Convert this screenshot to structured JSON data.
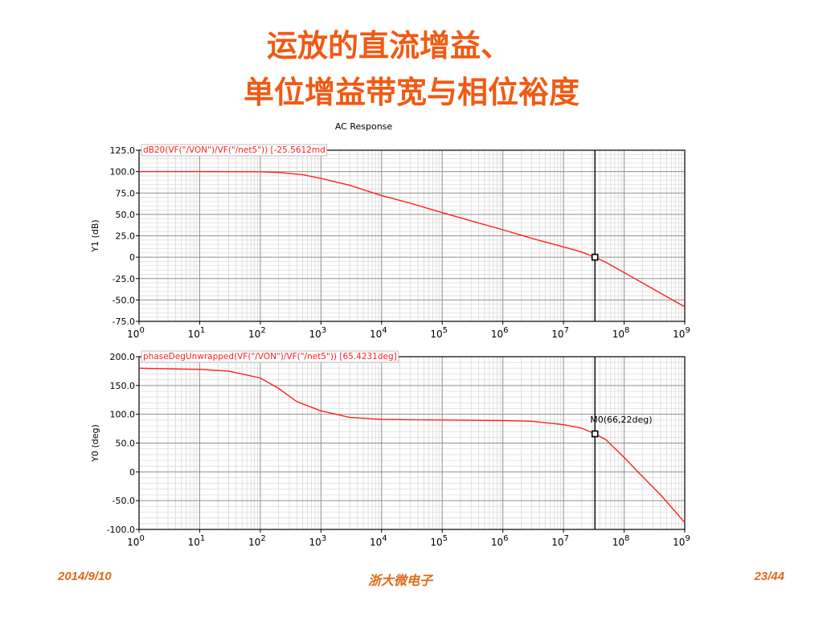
{
  "slide": {
    "title_line1": "运放的直流增益、",
    "title_line2": "单位增益带宽与相位裕度",
    "footer_date": "2014/9/10",
    "footer_center": "浙大微电子",
    "footer_page": "23/44",
    "title_color": "#f05a14",
    "footer_color": "#e06a1a"
  },
  "chart_data": [
    {
      "type": "line",
      "title": "AC Response",
      "ylabel": "Y1 (dB)",
      "xscale": "log",
      "xlim": [
        1,
        1000000000
      ],
      "ylim": [
        -75,
        125
      ],
      "yticks": [
        125,
        100,
        75,
        50,
        25,
        0,
        -25,
        -50,
        -75
      ],
      "ytick_labels": [
        "125.0",
        "100.0",
        "75.0",
        "50.0",
        "25.0",
        "0",
        "-25.0",
        "-50.0",
        "-75.0"
      ],
      "xticks": [
        1,
        10,
        100,
        1000,
        10000,
        100000,
        1000000,
        10000000,
        100000000,
        1000000000
      ],
      "xtick_labels": [
        "10^0",
        "10^1",
        "10^2",
        "10^3",
        "10^4",
        "10^5",
        "10^6",
        "10^7",
        "10^8",
        "10^9"
      ],
      "grid": true,
      "legend": "top-left",
      "series": [
        {
          "name": "dB20(VF(\"/VON\")/VF(\"/net5\")) [-25.5612md",
          "color": "#ff2020",
          "x": [
            1,
            10,
            100,
            200,
            500,
            1000,
            3000,
            10000,
            30000,
            100000,
            300000,
            1000000,
            3000000,
            10000000,
            20000000,
            33000000,
            50000000,
            100000000,
            200000000,
            500000000,
            1000000000
          ],
          "y": [
            100,
            100,
            99.8,
            99,
            96.5,
            92,
            84,
            72,
            63,
            52,
            42.5,
            32,
            22,
            12,
            6,
            0,
            -6,
            -18,
            -30,
            -46,
            -58
          ]
        }
      ],
      "markers": [
        {
          "x": 33000000,
          "y": 0
        }
      ]
    },
    {
      "type": "line",
      "ylabel": "Y0 (deg)",
      "xscale": "log",
      "xlim": [
        1,
        1000000000
      ],
      "ylim": [
        -100,
        200
      ],
      "yticks": [
        200,
        150,
        100,
        50,
        0,
        -50,
        -100
      ],
      "ytick_labels": [
        "200.0",
        "150.0",
        "100.0",
        "50.0",
        "0",
        "-50.0",
        "-100.0"
      ],
      "xticks": [
        1,
        10,
        100,
        1000,
        10000,
        100000,
        1000000,
        10000000,
        100000000,
        1000000000
      ],
      "xtick_labels": [
        "10^0",
        "10^1",
        "10^2",
        "10^3",
        "10^4",
        "10^5",
        "10^6",
        "10^7",
        "10^8",
        "10^9"
      ],
      "grid": true,
      "legend": "top-left",
      "series": [
        {
          "name": "phaseDegUnwrapped(VF(\"/VON\")/VF(\"/net5\")) [65.4231deg]",
          "color": "#ff2020",
          "x": [
            1,
            10,
            30,
            100,
            200,
            400,
            1000,
            3000,
            10000,
            100000,
            1000000,
            3000000,
            10000000,
            20000000,
            33000000,
            50000000,
            100000000,
            200000000,
            400000000,
            1000000000
          ],
          "y": [
            180,
            178,
            175,
            163,
            145,
            122,
            106,
            94.5,
            91,
            90,
            89,
            88,
            82,
            76,
            66,
            56,
            25,
            -8,
            -40,
            -88
          ]
        }
      ],
      "markers": [
        {
          "x": 33000000,
          "y": 66,
          "label": "M0(66,22deg)"
        }
      ]
    }
  ]
}
